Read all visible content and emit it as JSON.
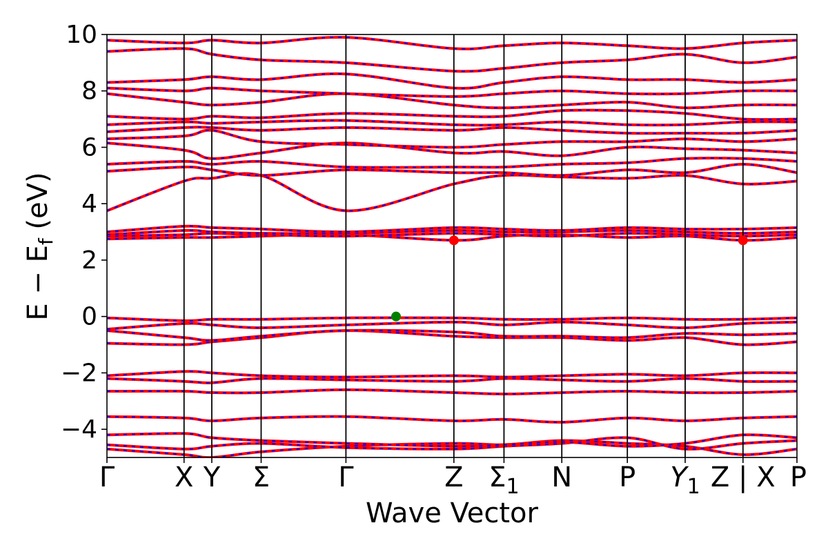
{
  "chart_data": {
    "type": "line",
    "title": "",
    "xlabel": "Wave Vector",
    "ylabel": "E − E_f (eV)",
    "ylabel_parts": {
      "main": "E − E",
      "sub": "f",
      "unit": " (eV)"
    },
    "ylim": [
      -5,
      10
    ],
    "yticks": [
      -4,
      -2,
      0,
      2,
      4,
      6,
      8,
      10
    ],
    "ytick_labels": [
      "−4",
      "−2",
      "0",
      "2",
      "4",
      "6",
      "8",
      "10"
    ],
    "grid": false,
    "legend": "none",
    "kpath": [
      {
        "label": "Γ",
        "x": 0.0
      },
      {
        "label": "X",
        "x": 1.0
      },
      {
        "label": "Y",
        "x": 1.36
      },
      {
        "label": "Σ",
        "x": 2.0
      },
      {
        "label": "Γ",
        "x": 3.1
      },
      {
        "label": "Z",
        "x": 4.5
      },
      {
        "label": "Σ",
        "sub": "1",
        "x": 5.15
      },
      {
        "label": "N",
        "x": 5.9
      },
      {
        "label": "P",
        "x": 6.75
      },
      {
        "label": "Y",
        "sub": "1",
        "x": 7.5,
        "italic": true
      },
      {
        "label": "Z | X",
        "x": 8.25
      },
      {
        "label": "P",
        "x": 8.95
      }
    ],
    "colors": {
      "band_primary": "#ff0000",
      "band_secondary": "#0000ff",
      "vbm_marker": "#008000",
      "cbm_marker": "#ff0000"
    },
    "markers": [
      {
        "name": "VBM",
        "x": 3.75,
        "y": 0.0,
        "color": "#008000"
      },
      {
        "name": "CBM",
        "x": 4.5,
        "y": 2.7,
        "color": "#ff0000"
      },
      {
        "name": "CBM",
        "x": 8.25,
        "y": 2.7,
        "color": "#ff0000"
      }
    ],
    "bands": [
      {
        "nodes": [
          -4.7,
          -4.9,
          -5.0,
          -4.8,
          -4.6,
          -4.5,
          -4.55,
          -4.4,
          -4.5,
          -4.6,
          -4.9,
          -4.7
        ]
      },
      {
        "nodes": [
          -4.55,
          -4.7,
          -4.6,
          -4.5,
          -4.65,
          -4.7,
          -4.6,
          -4.5,
          -4.3,
          -4.7,
          -4.5,
          -4.4
        ]
      },
      {
        "nodes": [
          -4.2,
          -4.15,
          -4.3,
          -4.4,
          -4.5,
          -4.6,
          -4.55,
          -4.45,
          -4.6,
          -4.5,
          -4.2,
          -4.3
        ]
      },
      {
        "nodes": [
          -3.55,
          -3.6,
          -3.7,
          -3.6,
          -3.55,
          -3.7,
          -3.65,
          -3.75,
          -3.6,
          -3.7,
          -3.6,
          -3.55
        ]
      },
      {
        "nodes": [
          -2.65,
          -2.65,
          -2.7,
          -2.7,
          -2.6,
          -2.7,
          -2.75,
          -2.7,
          -2.65,
          -2.7,
          -2.7,
          -2.65
        ]
      },
      {
        "nodes": [
          -2.2,
          -2.3,
          -2.35,
          -2.2,
          -2.25,
          -2.3,
          -2.2,
          -2.25,
          -2.3,
          -2.2,
          -2.3,
          -2.3
        ]
      },
      {
        "nodes": [
          -2.1,
          -1.95,
          -2.0,
          -2.1,
          -2.15,
          -2.1,
          -2.15,
          -2.1,
          -2.05,
          -2.1,
          -2.0,
          -2.0
        ]
      },
      {
        "nodes": [
          -0.95,
          -1.0,
          -0.9,
          -0.75,
          -0.5,
          -0.7,
          -0.75,
          -0.75,
          -0.85,
          -0.75,
          -1.0,
          -0.9
        ]
      },
      {
        "nodes": [
          -0.5,
          -0.75,
          -0.85,
          -0.7,
          -0.5,
          -0.55,
          -0.7,
          -0.7,
          -0.75,
          -0.6,
          -0.65,
          -0.6
        ]
      },
      {
        "nodes": [
          -0.45,
          -0.25,
          -0.3,
          -0.4,
          -0.3,
          -0.2,
          -0.3,
          -0.2,
          -0.3,
          -0.4,
          -0.25,
          -0.2
        ]
      },
      {
        "nodes": [
          -0.05,
          -0.15,
          -0.1,
          -0.1,
          -0.05,
          -0.05,
          -0.1,
          -0.1,
          -0.05,
          -0.1,
          -0.1,
          -0.05
        ]
      },
      {
        "nodes": [
          2.75,
          2.8,
          2.8,
          2.85,
          2.9,
          2.7,
          2.85,
          2.9,
          2.8,
          2.85,
          2.7,
          2.8
        ]
      },
      {
        "nodes": [
          2.85,
          2.9,
          2.95,
          2.9,
          2.85,
          2.95,
          2.9,
          2.85,
          2.95,
          2.9,
          2.85,
          2.9
        ]
      },
      {
        "nodes": [
          2.9,
          3.05,
          3.0,
          2.95,
          2.95,
          3.05,
          3.0,
          3.0,
          3.05,
          3.0,
          2.95,
          3.0
        ]
      },
      {
        "nodes": [
          3.0,
          3.2,
          3.15,
          3.1,
          3.0,
          3.15,
          3.1,
          3.05,
          3.15,
          3.1,
          3.1,
          3.15
        ]
      },
      {
        "nodes": [
          3.75,
          4.8,
          4.9,
          5.0,
          3.75,
          4.7,
          5.0,
          4.95,
          4.9,
          5.0,
          4.7,
          4.8
        ]
      },
      {
        "nodes": [
          5.15,
          5.3,
          5.2,
          5.0,
          5.2,
          5.1,
          5.1,
          5.0,
          5.2,
          5.1,
          5.4,
          5.1
        ]
      },
      {
        "nodes": [
          5.4,
          5.5,
          5.4,
          5.5,
          5.3,
          5.3,
          5.3,
          5.4,
          5.45,
          5.6,
          5.6,
          5.5
        ]
      },
      {
        "nodes": [
          6.15,
          5.9,
          5.6,
          5.8,
          6.15,
          5.8,
          5.85,
          5.7,
          6.0,
          5.95,
          5.9,
          5.8
        ]
      },
      {
        "nodes": [
          6.3,
          6.4,
          6.6,
          6.2,
          6.1,
          6.0,
          6.1,
          6.2,
          6.2,
          6.3,
          6.2,
          6.3
        ]
      },
      {
        "nodes": [
          6.55,
          6.7,
          6.7,
          6.6,
          6.7,
          6.6,
          6.7,
          6.6,
          6.5,
          6.5,
          6.5,
          6.6
        ]
      },
      {
        "nodes": [
          6.8,
          6.9,
          6.85,
          6.9,
          6.95,
          6.8,
          6.8,
          6.9,
          6.8,
          6.8,
          6.9,
          6.9
        ]
      },
      {
        "nodes": [
          7.1,
          7.0,
          7.1,
          7.05,
          7.2,
          7.1,
          7.1,
          7.3,
          7.3,
          7.2,
          7.0,
          7.0
        ]
      },
      {
        "nodes": [
          7.9,
          7.6,
          7.5,
          7.6,
          7.9,
          7.5,
          7.4,
          7.5,
          7.6,
          7.4,
          7.5,
          7.5
        ]
      },
      {
        "nodes": [
          8.1,
          8.0,
          8.1,
          8.0,
          7.9,
          7.8,
          7.9,
          8.0,
          7.9,
          7.9,
          8.0,
          8.0
        ]
      },
      {
        "nodes": [
          8.3,
          8.4,
          8.5,
          8.4,
          8.6,
          8.1,
          8.3,
          8.5,
          8.4,
          8.4,
          8.3,
          8.4
        ]
      },
      {
        "nodes": [
          9.4,
          9.5,
          9.3,
          9.1,
          9.0,
          8.7,
          8.8,
          9.0,
          9.1,
          9.3,
          9.0,
          9.2
        ]
      },
      {
        "nodes": [
          9.8,
          9.7,
          9.8,
          9.7,
          9.9,
          9.5,
          9.6,
          9.7,
          9.6,
          9.5,
          9.7,
          9.8
        ]
      }
    ]
  }
}
